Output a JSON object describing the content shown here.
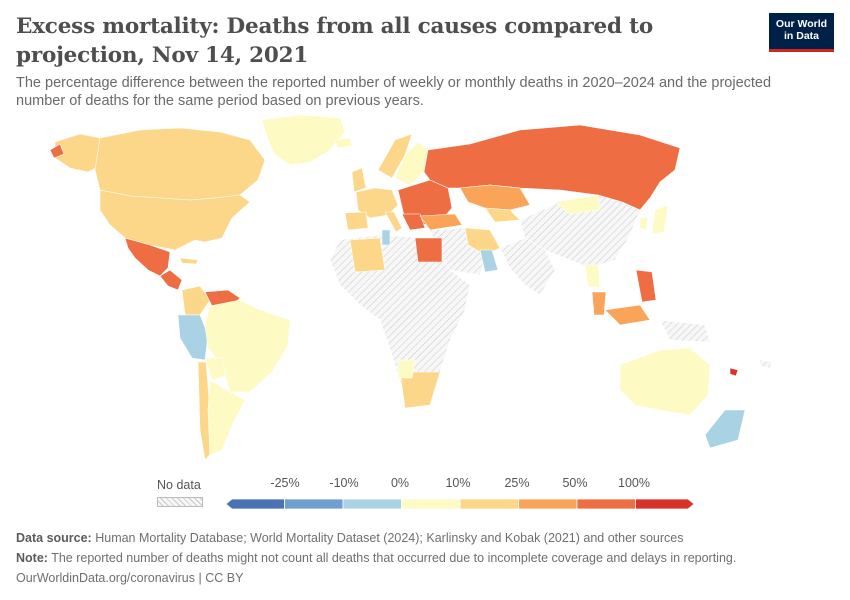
{
  "header": {
    "title": "Excess mortality: Deaths from all causes compared to projection, Nov 14, 2021",
    "subtitle": "The percentage difference between the reported number of weekly or monthly deaths in 2020–2024 and the projected number of deaths for the same period based on previous years.",
    "logo_line1": "Our World",
    "logo_line2": "in Data"
  },
  "legend": {
    "no_data_label": "No data",
    "ticks": [
      "-25%",
      "-10%",
      "0%",
      "10%",
      "25%",
      "50%",
      "100%"
    ],
    "bins": [
      {
        "color": "#4a72b4"
      },
      {
        "color": "#6e9fcf"
      },
      {
        "color": "#a9d2e5"
      },
      {
        "color": "#fefac4"
      },
      {
        "color": "#fdd789"
      },
      {
        "color": "#f9a458"
      },
      {
        "color": "#ef6d43"
      },
      {
        "color": "#d8332b"
      }
    ]
  },
  "colors": {
    "nodata_fill": "#eeeeee",
    "ocean": "#ffffff",
    "border": "#ffffff",
    "v_neg10_0": "#a9d2e5",
    "v_0_10": "#fefac4",
    "v_10_25": "#fdd789",
    "v_25_50": "#f9a458",
    "v_50_100": "#ef6d43",
    "v_gt100": "#d8332b"
  },
  "footer": {
    "source_label": "Data source:",
    "source_text": "Human Mortality Database; World Mortality Dataset (2024); Karlinsky and Kobak (2021) and other sources",
    "note_label": "Note:",
    "note_text": "The reported number of deaths might not count all deaths that occurred due to incomplete coverage and delays in reporting.",
    "link_text": "OurWorldinData.org/coronavirus | CC BY"
  }
}
